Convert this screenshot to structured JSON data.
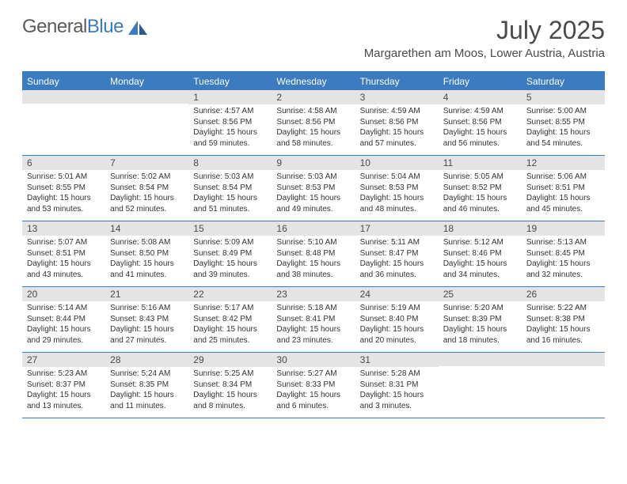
{
  "brand": {
    "part1": "General",
    "part2": "Blue"
  },
  "title": "July 2025",
  "location": "Margarethen am Moos, Lower Austria, Austria",
  "colors": {
    "accent": "#3b7bbf",
    "header_text": "#ffffff",
    "daynum_bg": "#e4e4e4",
    "text": "#4a4a4a",
    "body_text": "#333333"
  },
  "day_names": [
    "Sunday",
    "Monday",
    "Tuesday",
    "Wednesday",
    "Thursday",
    "Friday",
    "Saturday"
  ],
  "weeks": [
    [
      null,
      null,
      {
        "n": "1",
        "sr": "4:57 AM",
        "ss": "8:56 PM",
        "dl": "15 hours and 59 minutes."
      },
      {
        "n": "2",
        "sr": "4:58 AM",
        "ss": "8:56 PM",
        "dl": "15 hours and 58 minutes."
      },
      {
        "n": "3",
        "sr": "4:59 AM",
        "ss": "8:56 PM",
        "dl": "15 hours and 57 minutes."
      },
      {
        "n": "4",
        "sr": "4:59 AM",
        "ss": "8:56 PM",
        "dl": "15 hours and 56 minutes."
      },
      {
        "n": "5",
        "sr": "5:00 AM",
        "ss": "8:55 PM",
        "dl": "15 hours and 54 minutes."
      }
    ],
    [
      {
        "n": "6",
        "sr": "5:01 AM",
        "ss": "8:55 PM",
        "dl": "15 hours and 53 minutes."
      },
      {
        "n": "7",
        "sr": "5:02 AM",
        "ss": "8:54 PM",
        "dl": "15 hours and 52 minutes."
      },
      {
        "n": "8",
        "sr": "5:03 AM",
        "ss": "8:54 PM",
        "dl": "15 hours and 51 minutes."
      },
      {
        "n": "9",
        "sr": "5:03 AM",
        "ss": "8:53 PM",
        "dl": "15 hours and 49 minutes."
      },
      {
        "n": "10",
        "sr": "5:04 AM",
        "ss": "8:53 PM",
        "dl": "15 hours and 48 minutes."
      },
      {
        "n": "11",
        "sr": "5:05 AM",
        "ss": "8:52 PM",
        "dl": "15 hours and 46 minutes."
      },
      {
        "n": "12",
        "sr": "5:06 AM",
        "ss": "8:51 PM",
        "dl": "15 hours and 45 minutes."
      }
    ],
    [
      {
        "n": "13",
        "sr": "5:07 AM",
        "ss": "8:51 PM",
        "dl": "15 hours and 43 minutes."
      },
      {
        "n": "14",
        "sr": "5:08 AM",
        "ss": "8:50 PM",
        "dl": "15 hours and 41 minutes."
      },
      {
        "n": "15",
        "sr": "5:09 AM",
        "ss": "8:49 PM",
        "dl": "15 hours and 39 minutes."
      },
      {
        "n": "16",
        "sr": "5:10 AM",
        "ss": "8:48 PM",
        "dl": "15 hours and 38 minutes."
      },
      {
        "n": "17",
        "sr": "5:11 AM",
        "ss": "8:47 PM",
        "dl": "15 hours and 36 minutes."
      },
      {
        "n": "18",
        "sr": "5:12 AM",
        "ss": "8:46 PM",
        "dl": "15 hours and 34 minutes."
      },
      {
        "n": "19",
        "sr": "5:13 AM",
        "ss": "8:45 PM",
        "dl": "15 hours and 32 minutes."
      }
    ],
    [
      {
        "n": "20",
        "sr": "5:14 AM",
        "ss": "8:44 PM",
        "dl": "15 hours and 29 minutes."
      },
      {
        "n": "21",
        "sr": "5:16 AM",
        "ss": "8:43 PM",
        "dl": "15 hours and 27 minutes."
      },
      {
        "n": "22",
        "sr": "5:17 AM",
        "ss": "8:42 PM",
        "dl": "15 hours and 25 minutes."
      },
      {
        "n": "23",
        "sr": "5:18 AM",
        "ss": "8:41 PM",
        "dl": "15 hours and 23 minutes."
      },
      {
        "n": "24",
        "sr": "5:19 AM",
        "ss": "8:40 PM",
        "dl": "15 hours and 20 minutes."
      },
      {
        "n": "25",
        "sr": "5:20 AM",
        "ss": "8:39 PM",
        "dl": "15 hours and 18 minutes."
      },
      {
        "n": "26",
        "sr": "5:22 AM",
        "ss": "8:38 PM",
        "dl": "15 hours and 16 minutes."
      }
    ],
    [
      {
        "n": "27",
        "sr": "5:23 AM",
        "ss": "8:37 PM",
        "dl": "15 hours and 13 minutes."
      },
      {
        "n": "28",
        "sr": "5:24 AM",
        "ss": "8:35 PM",
        "dl": "15 hours and 11 minutes."
      },
      {
        "n": "29",
        "sr": "5:25 AM",
        "ss": "8:34 PM",
        "dl": "15 hours and 8 minutes."
      },
      {
        "n": "30",
        "sr": "5:27 AM",
        "ss": "8:33 PM",
        "dl": "15 hours and 6 minutes."
      },
      {
        "n": "31",
        "sr": "5:28 AM",
        "ss": "8:31 PM",
        "dl": "15 hours and 3 minutes."
      },
      null,
      null
    ]
  ],
  "labels": {
    "sunrise": "Sunrise:",
    "sunset": "Sunset:",
    "daylight": "Daylight:"
  }
}
